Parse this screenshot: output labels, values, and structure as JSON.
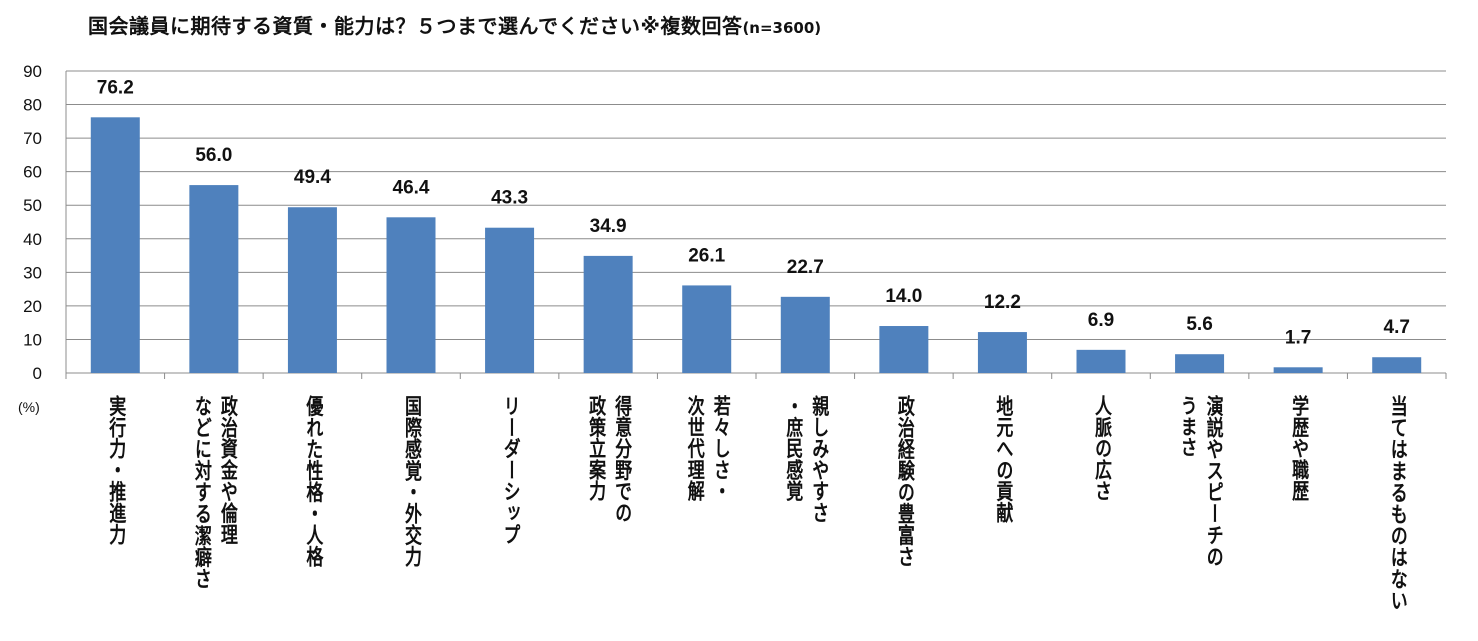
{
  "chart_data": {
    "type": "bar",
    "title": "国会議員に期待する資質・能力は？５つまで選んでください※複数回答",
    "note": "(n=3600)",
    "ylabel": "(%)",
    "ylim": [
      0,
      90
    ],
    "yticks": [
      0,
      10,
      20,
      30,
      40,
      50,
      60,
      70,
      80,
      90
    ],
    "grid": true,
    "bar_color": "#4f81bd",
    "categories": [
      [
        "実行力・推進力"
      ],
      [
        "政治資金や倫理",
        "などに対する潔癖さ"
      ],
      [
        "優れた性格・人格"
      ],
      [
        "国際感覚・外交力"
      ],
      [
        "リーダーシップ"
      ],
      [
        "得意分野での",
        "政策立案力"
      ],
      [
        "若々しさ・",
        "次世代理解"
      ],
      [
        "親しみやすさ",
        "・庶民感覚"
      ],
      [
        "政治経験の豊富さ"
      ],
      [
        "地元への貢献"
      ],
      [
        "人脈の広さ"
      ],
      [
        "演説やスピーチの",
        "うまさ"
      ],
      [
        "学歴や職歴"
      ],
      [
        "当てはまるものはない"
      ]
    ],
    "values": [
      76.2,
      56.0,
      49.4,
      46.4,
      43.3,
      34.9,
      26.1,
      22.7,
      14.0,
      12.2,
      6.9,
      5.6,
      1.7,
      4.7
    ],
    "data_labels": [
      "76.2",
      "56.0",
      "49.4",
      "46.4",
      "43.3",
      "34.9",
      "26.1",
      "22.7",
      "14.0",
      "12.2",
      "6.9",
      "5.6",
      "1.7",
      "4.7"
    ]
  }
}
